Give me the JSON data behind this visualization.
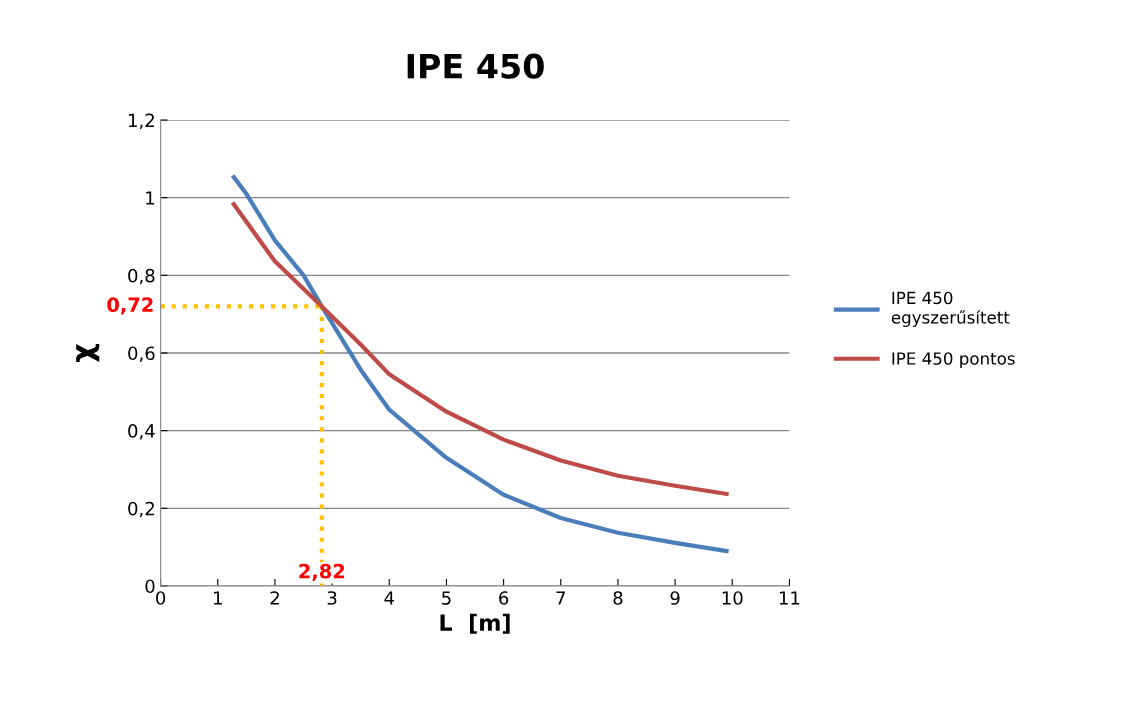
{
  "chart_data": {
    "type": "line",
    "title": "IPE 450",
    "xlabel": "L  [m]",
    "ylabel": "χ",
    "xlim": [
      0,
      11
    ],
    "xticks": [
      0,
      1,
      2,
      3,
      4,
      5,
      6,
      7,
      8,
      9,
      10,
      11
    ],
    "ylim": [
      0,
      1.2
    ],
    "yticks": [
      0,
      {
        "value": 0.2,
        "label": "0,2"
      },
      {
        "value": 0.4,
        "label": "0,4"
      },
      {
        "value": 0.6,
        "label": "0,6"
      },
      {
        "value": 0.8,
        "label": "0,8"
      },
      1,
      {
        "value": 1.2,
        "label": "1,2"
      }
    ],
    "grid": "y",
    "legend": "right",
    "marker": "none",
    "line_style": "solid",
    "series": [
      {
        "name": "IPE 450\negyszerűsített",
        "color": "#4a7ebb",
        "x": [
          1.28,
          1.5,
          2,
          2.5,
          2.82,
          3.5,
          4,
          5,
          6,
          7,
          8,
          9,
          9.9
        ],
        "values": [
          1.053,
          1.01,
          0.89,
          0.8,
          0.72,
          0.557,
          0.454,
          0.33,
          0.235,
          0.175,
          0.137,
          0.111,
          0.09
        ]
      },
      {
        "name": "IPE 450 pontos",
        "color": "#be4b48",
        "x": [
          1.28,
          2,
          2.82,
          3.5,
          4,
          5,
          6,
          7,
          8,
          9,
          9.9
        ],
        "values": [
          0.983,
          0.836,
          0.72,
          0.622,
          0.545,
          0.449,
          0.377,
          0.323,
          0.284,
          0.258,
          0.237
        ]
      }
    ],
    "ref_lines": [
      {
        "axis": "y",
        "value": 0.72,
        "label": "0,72",
        "color": "#ffc000",
        "line_style": "dotted"
      },
      {
        "axis": "x",
        "value": 2.82,
        "label": "2,82",
        "color": "#ffc000",
        "line_style": "dotted"
      }
    ]
  }
}
